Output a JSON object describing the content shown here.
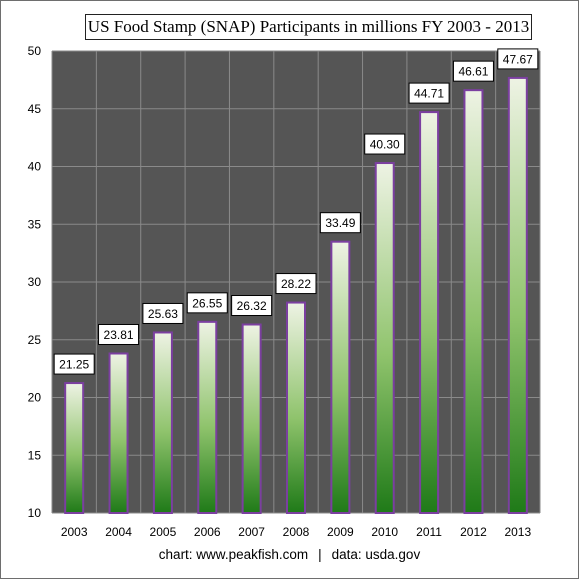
{
  "chart_data": {
    "type": "bar",
    "title": "US Food Stamp (SNAP) Participants in millions  FY 2003 - 2013",
    "xlabel": "",
    "ylabel": "",
    "categories": [
      "2003",
      "2004",
      "2005",
      "2006",
      "2007",
      "2008",
      "2009",
      "2010",
      "2011",
      "2012",
      "2013"
    ],
    "values": [
      21.25,
      23.81,
      25.63,
      26.55,
      26.32,
      28.22,
      33.49,
      40.3,
      44.71,
      46.61,
      47.67
    ],
    "value_labels": [
      "21.25",
      "23.81",
      "25.63",
      "26.55",
      "26.32",
      "28.22",
      "33.49",
      "40.30",
      "44.71",
      "46.61",
      "47.67"
    ],
    "ylim": [
      10,
      50
    ],
    "yticks": [
      10,
      15,
      20,
      25,
      30,
      35,
      40,
      45,
      50
    ],
    "grid": true,
    "legend": "none",
    "colors": {
      "plot_background": "#555555",
      "gridline": "#8a8a8a",
      "bar_top": "#eef3e4",
      "bar_mid": "#8fc36c",
      "bar_bottom": "#1f7a18",
      "bar_border": "#7b3fa0"
    }
  },
  "footer": {
    "chart_credit": "chart:  www.peakfish.com",
    "separator": "|",
    "data_credit": "data: usda.gov"
  }
}
